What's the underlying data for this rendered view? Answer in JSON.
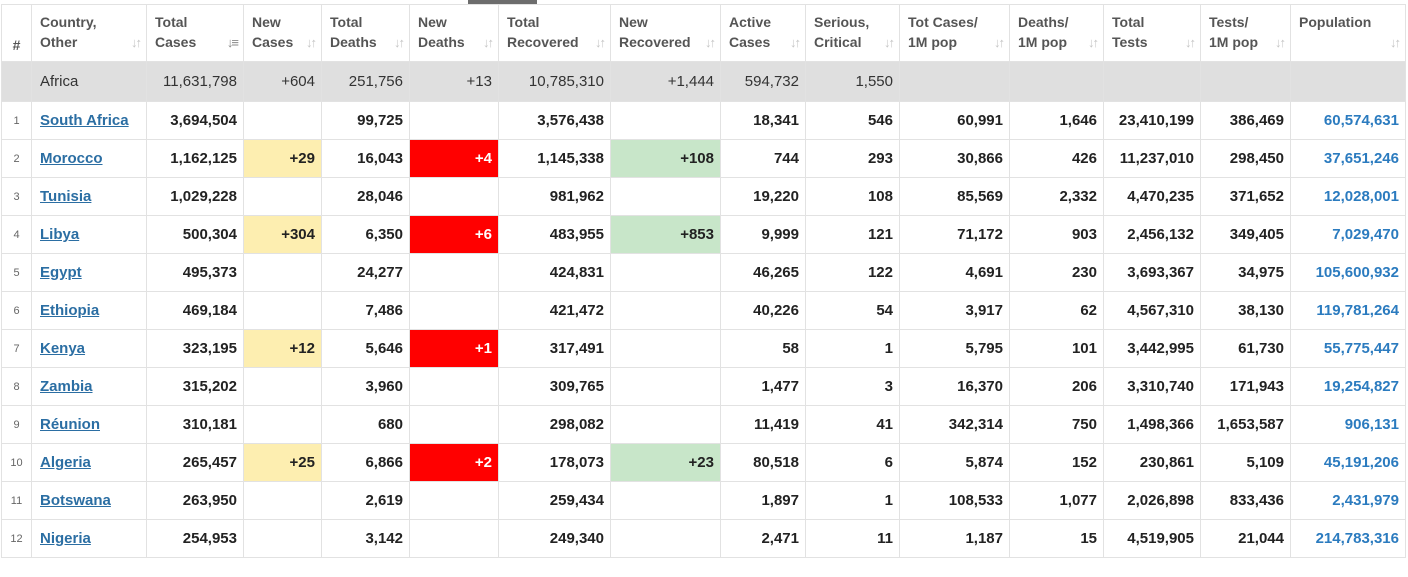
{
  "columns": [
    {
      "key": "rank",
      "l1": "#",
      "l2": "",
      "sorted": false
    },
    {
      "key": "country",
      "l1": "Country,",
      "l2": "Other",
      "sorted": false
    },
    {
      "key": "total_cases",
      "l1": "Total",
      "l2": "Cases",
      "sorted": true
    },
    {
      "key": "new_cases",
      "l1": "New",
      "l2": "Cases",
      "sorted": false
    },
    {
      "key": "total_deaths",
      "l1": "Total",
      "l2": "Deaths",
      "sorted": false
    },
    {
      "key": "new_deaths",
      "l1": "New",
      "l2": "Deaths",
      "sorted": false
    },
    {
      "key": "total_recovered",
      "l1": "Total",
      "l2": "Recovered",
      "sorted": false
    },
    {
      "key": "new_recovered",
      "l1": "New",
      "l2": "Recovered",
      "sorted": false
    },
    {
      "key": "active_cases",
      "l1": "Active",
      "l2": "Cases",
      "sorted": false
    },
    {
      "key": "serious",
      "l1": "Serious,",
      "l2": "Critical",
      "sorted": false
    },
    {
      "key": "cases_per_m",
      "l1": "Tot Cases/",
      "l2": "1M pop",
      "sorted": false
    },
    {
      "key": "deaths_per_m",
      "l1": "Deaths/",
      "l2": "1M pop",
      "sorted": false
    },
    {
      "key": "total_tests",
      "l1": "Total",
      "l2": "Tests",
      "sorted": false
    },
    {
      "key": "tests_per_m",
      "l1": "Tests/",
      "l2": "1M pop",
      "sorted": false
    },
    {
      "key": "population",
      "l1": "Population",
      "l2": "",
      "sorted": false
    }
  ],
  "icons": {
    "sort": "sort-icon",
    "sorted": "sort-desc-icon"
  },
  "highlight_colors": {
    "new_cases": "#fdeeb0",
    "new_deaths": "#ff0000",
    "new_recovered": "#c8e6c9"
  },
  "continent_row": {
    "country": "Africa",
    "total_cases": "11,631,798",
    "new_cases": "+604",
    "total_deaths": "251,756",
    "new_deaths": "+13",
    "total_recovered": "10,785,310",
    "new_recovered": "+1,444",
    "active_cases": "594,732",
    "serious": "1,550"
  },
  "rows": [
    {
      "rank": "1",
      "country": "South Africa",
      "total_cases": "3,694,504",
      "new_cases": "",
      "total_deaths": "99,725",
      "new_deaths": "",
      "total_recovered": "3,576,438",
      "new_recovered": "",
      "active_cases": "18,341",
      "serious": "546",
      "cases_per_m": "60,991",
      "deaths_per_m": "1,646",
      "total_tests": "23,410,199",
      "tests_per_m": "386,469",
      "population": "60,574,631"
    },
    {
      "rank": "2",
      "country": "Morocco",
      "total_cases": "1,162,125",
      "new_cases": "+29",
      "total_deaths": "16,043",
      "new_deaths": "+4",
      "total_recovered": "1,145,338",
      "new_recovered": "+108",
      "active_cases": "744",
      "serious": "293",
      "cases_per_m": "30,866",
      "deaths_per_m": "426",
      "total_tests": "11,237,010",
      "tests_per_m": "298,450",
      "population": "37,651,246"
    },
    {
      "rank": "3",
      "country": "Tunisia",
      "total_cases": "1,029,228",
      "new_cases": "",
      "total_deaths": "28,046",
      "new_deaths": "",
      "total_recovered": "981,962",
      "new_recovered": "",
      "active_cases": "19,220",
      "serious": "108",
      "cases_per_m": "85,569",
      "deaths_per_m": "2,332",
      "total_tests": "4,470,235",
      "tests_per_m": "371,652",
      "population": "12,028,001"
    },
    {
      "rank": "4",
      "country": "Libya",
      "total_cases": "500,304",
      "new_cases": "+304",
      "total_deaths": "6,350",
      "new_deaths": "+6",
      "total_recovered": "483,955",
      "new_recovered": "+853",
      "active_cases": "9,999",
      "serious": "121",
      "cases_per_m": "71,172",
      "deaths_per_m": "903",
      "total_tests": "2,456,132",
      "tests_per_m": "349,405",
      "population": "7,029,470"
    },
    {
      "rank": "5",
      "country": "Egypt",
      "total_cases": "495,373",
      "new_cases": "",
      "total_deaths": "24,277",
      "new_deaths": "",
      "total_recovered": "424,831",
      "new_recovered": "",
      "active_cases": "46,265",
      "serious": "122",
      "cases_per_m": "4,691",
      "deaths_per_m": "230",
      "total_tests": "3,693,367",
      "tests_per_m": "34,975",
      "population": "105,600,932"
    },
    {
      "rank": "6",
      "country": "Ethiopia",
      "total_cases": "469,184",
      "new_cases": "",
      "total_deaths": "7,486",
      "new_deaths": "",
      "total_recovered": "421,472",
      "new_recovered": "",
      "active_cases": "40,226",
      "serious": "54",
      "cases_per_m": "3,917",
      "deaths_per_m": "62",
      "total_tests": "4,567,310",
      "tests_per_m": "38,130",
      "population": "119,781,264"
    },
    {
      "rank": "7",
      "country": "Kenya",
      "total_cases": "323,195",
      "new_cases": "+12",
      "total_deaths": "5,646",
      "new_deaths": "+1",
      "total_recovered": "317,491",
      "new_recovered": "",
      "active_cases": "58",
      "serious": "1",
      "cases_per_m": "5,795",
      "deaths_per_m": "101",
      "total_tests": "3,442,995",
      "tests_per_m": "61,730",
      "population": "55,775,447"
    },
    {
      "rank": "8",
      "country": "Zambia",
      "total_cases": "315,202",
      "new_cases": "",
      "total_deaths": "3,960",
      "new_deaths": "",
      "total_recovered": "309,765",
      "new_recovered": "",
      "active_cases": "1,477",
      "serious": "3",
      "cases_per_m": "16,370",
      "deaths_per_m": "206",
      "total_tests": "3,310,740",
      "tests_per_m": "171,943",
      "population": "19,254,827"
    },
    {
      "rank": "9",
      "country": "Réunion",
      "total_cases": "310,181",
      "new_cases": "",
      "total_deaths": "680",
      "new_deaths": "",
      "total_recovered": "298,082",
      "new_recovered": "",
      "active_cases": "11,419",
      "serious": "41",
      "cases_per_m": "342,314",
      "deaths_per_m": "750",
      "total_tests": "1,498,366",
      "tests_per_m": "1,653,587",
      "population": "906,131"
    },
    {
      "rank": "10",
      "country": "Algeria",
      "total_cases": "265,457",
      "new_cases": "+25",
      "total_deaths": "6,866",
      "new_deaths": "+2",
      "total_recovered": "178,073",
      "new_recovered": "+23",
      "active_cases": "80,518",
      "serious": "6",
      "cases_per_m": "5,874",
      "deaths_per_m": "152",
      "total_tests": "230,861",
      "tests_per_m": "5,109",
      "population": "45,191,206"
    },
    {
      "rank": "11",
      "country": "Botswana",
      "total_cases": "263,950",
      "new_cases": "",
      "total_deaths": "2,619",
      "new_deaths": "",
      "total_recovered": "259,434",
      "new_recovered": "",
      "active_cases": "1,897",
      "serious": "1",
      "cases_per_m": "108,533",
      "deaths_per_m": "1,077",
      "total_tests": "2,026,898",
      "tests_per_m": "833,436",
      "population": "2,431,979"
    },
    {
      "rank": "12",
      "country": "Nigeria",
      "total_cases": "254,953",
      "new_cases": "",
      "total_deaths": "3,142",
      "new_deaths": "",
      "total_recovered": "249,340",
      "new_recovered": "",
      "active_cases": "2,471",
      "serious": "11",
      "cases_per_m": "1,187",
      "deaths_per_m": "15",
      "total_tests": "4,519,905",
      "tests_per_m": "21,044",
      "population": "214,783,316"
    }
  ]
}
